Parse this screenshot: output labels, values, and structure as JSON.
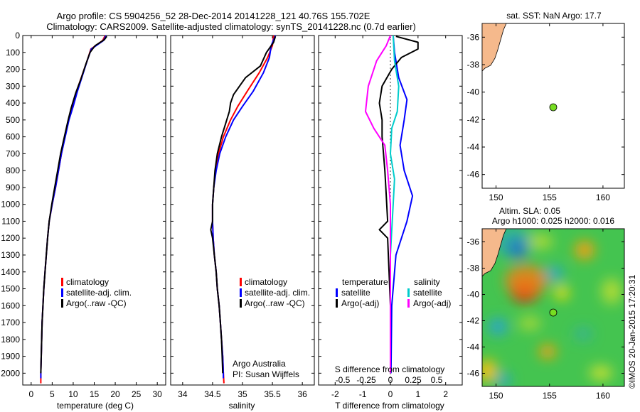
{
  "title_line1": "Argo profile: CS 5904256_52 28-Dec-2014 20141228_121 40.76S 155.702E",
  "title_line2": "Climatology: CARS2009. Satellite-adjusted climatology: synTS_20141228.nc (0.7d earlier)",
  "chart_data": [
    {
      "type": "line",
      "xlabel": "temperature (deg C)",
      "ylabel": "",
      "xlim": [
        -2,
        32
      ],
      "ylim": [
        2070,
        0
      ],
      "xticks": [
        0,
        5,
        10,
        15,
        20,
        25,
        30
      ],
      "yticks": [
        0,
        100,
        200,
        300,
        400,
        500,
        600,
        700,
        800,
        900,
        1000,
        1100,
        1200,
        1300,
        1400,
        1500,
        1600,
        1700,
        1800,
        1900,
        2000
      ],
      "legend": [
        "climatology",
        "satellite-adj. clim.",
        "Argo(..raw -QC)"
      ],
      "series": [
        {
          "name": "climatology",
          "color": "#ff0000",
          "points": [
            [
              17.6,
              0
            ],
            [
              17.0,
              30
            ],
            [
              14.2,
              80
            ],
            [
              13.3,
              150
            ],
            [
              12.2,
              230
            ],
            [
              10.8,
              330
            ],
            [
              9.8,
              420
            ],
            [
              8.9,
              500
            ],
            [
              8.0,
              600
            ],
            [
              7.2,
              700
            ],
            [
              6.5,
              800
            ],
            [
              5.8,
              900
            ],
            [
              5.0,
              1000
            ],
            [
              4.3,
              1100
            ],
            [
              3.9,
              1200
            ],
            [
              3.6,
              1300
            ],
            [
              3.3,
              1400
            ],
            [
              3.0,
              1500
            ],
            [
              2.8,
              1600
            ],
            [
              2.6,
              1700
            ],
            [
              2.5,
              1800
            ],
            [
              2.4,
              1900
            ],
            [
              2.3,
              2000
            ],
            [
              2.3,
              2060
            ]
          ]
        },
        {
          "name": "satellite-adj. clim.",
          "color": "#0000ff",
          "points": [
            [
              17.8,
              0
            ],
            [
              17.2,
              30
            ],
            [
              14.3,
              80
            ],
            [
              13.3,
              150
            ],
            [
              12.3,
              230
            ],
            [
              11.0,
              330
            ],
            [
              10.0,
              420
            ],
            [
              9.0,
              500
            ],
            [
              8.1,
              600
            ],
            [
              7.2,
              700
            ],
            [
              6.5,
              800
            ],
            [
              5.8,
              900
            ],
            [
              5.0,
              1000
            ],
            [
              4.3,
              1100
            ],
            [
              3.9,
              1200
            ],
            [
              3.6,
              1300
            ],
            [
              3.3,
              1400
            ],
            [
              3.0,
              1500
            ],
            [
              2.8,
              1600
            ],
            [
              2.6,
              1700
            ],
            [
              2.5,
              1800
            ],
            [
              2.4,
              1900
            ],
            [
              2.3,
              2000
            ],
            [
              2.3,
              2030
            ]
          ]
        },
        {
          "name": "Argo(..raw -QC)",
          "color": "#000000",
          "points": [
            [
              18.0,
              5
            ],
            [
              17.4,
              25
            ],
            [
              15.2,
              60
            ],
            [
              14.0,
              100
            ],
            [
              13.0,
              170
            ],
            [
              11.8,
              260
            ],
            [
              10.6,
              340
            ],
            [
              9.5,
              430
            ],
            [
              8.7,
              510
            ],
            [
              7.9,
              600
            ],
            [
              7.0,
              700
            ],
            [
              6.3,
              800
            ],
            [
              5.6,
              900
            ],
            [
              4.9,
              1000
            ],
            [
              4.3,
              1100
            ],
            [
              3.9,
              1200
            ],
            [
              3.6,
              1300
            ],
            [
              3.3,
              1400
            ],
            [
              3.0,
              1500
            ],
            [
              2.8,
              1600
            ],
            [
              2.6,
              1700
            ],
            [
              2.5,
              1800
            ],
            [
              2.4,
              1900
            ],
            [
              2.3,
              2000
            ]
          ]
        }
      ]
    },
    {
      "type": "line",
      "xlabel": "salinity",
      "ylabel": "",
      "xlim": [
        33.8,
        36.2
      ],
      "ylim": [
        2070,
        0
      ],
      "xticks": [
        34,
        34.5,
        35,
        35.5,
        36
      ],
      "xticklabels": [
        "34",
        "34.5",
        "35",
        "35.5",
        "36"
      ],
      "legend": [
        "climatology",
        "satellite-adj. clim.",
        "Argo(..raw -QC)"
      ],
      "annotation": [
        "Argo Australia",
        "PI: Susan Wijffels"
      ],
      "series": [
        {
          "name": "climatology",
          "color": "#ff0000",
          "points": [
            [
              35.52,
              0
            ],
            [
              35.5,
              60
            ],
            [
              35.42,
              130
            ],
            [
              35.28,
              220
            ],
            [
              35.08,
              330
            ],
            [
              34.92,
              420
            ],
            [
              34.8,
              500
            ],
            [
              34.68,
              600
            ],
            [
              34.6,
              700
            ],
            [
              34.55,
              800
            ],
            [
              34.52,
              900
            ],
            [
              34.5,
              1000
            ],
            [
              34.5,
              1100
            ],
            [
              34.51,
              1200
            ],
            [
              34.53,
              1300
            ],
            [
              34.56,
              1400
            ],
            [
              34.58,
              1500
            ],
            [
              34.61,
              1600
            ],
            [
              34.63,
              1700
            ],
            [
              34.65,
              1800
            ],
            [
              34.67,
              1900
            ],
            [
              34.68,
              2000
            ],
            [
              34.69,
              2060
            ]
          ]
        },
        {
          "name": "satellite-adj. clim.",
          "color": "#0000ff",
          "points": [
            [
              35.55,
              0
            ],
            [
              35.48,
              60
            ],
            [
              35.45,
              130
            ],
            [
              35.35,
              220
            ],
            [
              35.18,
              330
            ],
            [
              35.0,
              420
            ],
            [
              34.85,
              500
            ],
            [
              34.72,
              600
            ],
            [
              34.62,
              700
            ],
            [
              34.56,
              800
            ],
            [
              34.52,
              900
            ],
            [
              34.5,
              1000
            ],
            [
              34.5,
              1100
            ],
            [
              34.51,
              1200
            ],
            [
              34.53,
              1300
            ],
            [
              34.56,
              1400
            ],
            [
              34.58,
              1500
            ],
            [
              34.61,
              1600
            ],
            [
              34.63,
              1700
            ],
            [
              34.65,
              1800
            ],
            [
              34.67,
              1900
            ],
            [
              34.68,
              2000
            ],
            [
              34.68,
              2030
            ]
          ]
        },
        {
          "name": "Argo(..raw -QC)",
          "color": "#000000",
          "points": [
            [
              35.55,
              5
            ],
            [
              35.52,
              40
            ],
            [
              35.4,
              100
            ],
            [
              35.3,
              180
            ],
            [
              35.05,
              250
            ],
            [
              34.95,
              300
            ],
            [
              34.85,
              350
            ],
            [
              34.8,
              400
            ],
            [
              34.78,
              450
            ],
            [
              34.72,
              520
            ],
            [
              34.65,
              600
            ],
            [
              34.58,
              700
            ],
            [
              34.54,
              800
            ],
            [
              34.52,
              900
            ],
            [
              34.5,
              1000
            ],
            [
              34.5,
              1100
            ],
            [
              34.47,
              1150
            ],
            [
              34.5,
              1200
            ],
            [
              34.53,
              1300
            ],
            [
              34.56,
              1400
            ],
            [
              34.58,
              1500
            ],
            [
              34.61,
              1600
            ],
            [
              34.63,
              1700
            ],
            [
              34.65,
              1800
            ],
            [
              34.66,
              1900
            ],
            [
              34.67,
              2000
            ]
          ]
        }
      ]
    },
    {
      "type": "line",
      "xlabel": "T difference from climatology",
      "xlabel_top": "S difference from climatology",
      "xlim": [
        -2.6,
        2.6
      ],
      "ylim": [
        2070,
        0
      ],
      "xticks": [
        -2,
        -1,
        0,
        1,
        2
      ],
      "top_ticks": [
        "-0.5",
        "-0.25",
        "0",
        "0.25",
        "0.5"
      ],
      "legend_temperature": [
        "temperature",
        "satellite",
        "Argo(-adj)"
      ],
      "legend_salinity": [
        "salinity",
        "satellite",
        "Argo(-adj)"
      ],
      "series": [
        {
          "name": "temperature satellite",
          "color": "#0000ff",
          "points": [
            [
              0.1,
              0
            ],
            [
              0.15,
              100
            ],
            [
              0.3,
              250
            ],
            [
              0.6,
              380
            ],
            [
              0.5,
              500
            ],
            [
              0.35,
              650
            ],
            [
              0.5,
              800
            ],
            [
              0.8,
              950
            ],
            [
              0.6,
              1100
            ],
            [
              0.2,
              1300
            ],
            [
              0.05,
              1600
            ],
            [
              0.02,
              2000
            ]
          ]
        },
        {
          "name": "temperature Argo(-adj)",
          "color": "#000000",
          "points": [
            [
              0.2,
              5
            ],
            [
              1.0,
              40
            ],
            [
              1.0,
              80
            ],
            [
              0.4,
              130
            ],
            [
              0.05,
              200
            ],
            [
              -0.3,
              300
            ],
            [
              -0.4,
              400
            ],
            [
              -0.3,
              500
            ],
            [
              -0.3,
              600
            ],
            [
              -0.25,
              700
            ],
            [
              -0.2,
              800
            ],
            [
              -0.15,
              950
            ],
            [
              -0.1,
              1100
            ],
            [
              -0.4,
              1150
            ],
            [
              -0.1,
              1200
            ],
            [
              -0.05,
              1400
            ],
            [
              0,
              1600
            ],
            [
              0,
              2000
            ]
          ]
        },
        {
          "name": "salinity satellite",
          "color": "#00cccc",
          "points": [
            [
              0.1,
              0
            ],
            [
              0.15,
              150
            ],
            [
              0.3,
              300
            ],
            [
              0.25,
              450
            ],
            [
              0.05,
              550
            ],
            [
              0.0,
              700
            ],
            [
              0.15,
              850
            ],
            [
              0.1,
              1000
            ],
            [
              0.0,
              1300
            ],
            [
              0.0,
              2000
            ]
          ]
        },
        {
          "name": "salinity Argo(-adj)",
          "color": "#ff00ff",
          "points": [
            [
              0,
              0
            ],
            [
              -0.15,
              60
            ],
            [
              -0.5,
              150
            ],
            [
              -0.8,
              300
            ],
            [
              -0.9,
              450
            ],
            [
              -0.6,
              550
            ],
            [
              -0.2,
              650
            ],
            [
              -0.1,
              800
            ],
            [
              0,
              1000
            ],
            [
              0,
              2000
            ]
          ]
        }
      ]
    }
  ],
  "map_top": {
    "title": "sat. SST: NaN  Argo: 17.7",
    "xticks": [
      "150",
      "155",
      "160"
    ],
    "yticks": [
      "-36",
      "-38",
      "-40",
      "-42",
      "-44",
      "-46"
    ],
    "marker_lon": 155.702,
    "marker_lat": -40.76
  },
  "map_bottom": {
    "title_line1": "Altim. SLA: 0.05",
    "title_line2": "Argo h1000: 0.025 h2000: 0.016",
    "xticks": [
      "150",
      "155",
      "160"
    ],
    "yticks": [
      "-36",
      "-38",
      "-40",
      "-42",
      "-44",
      "-46"
    ],
    "marker_lon": 155.702,
    "marker_lat": -40.76
  },
  "credit": "©IMOS 20-Jan-2015 17:20:31",
  "colors": {
    "climatology": "#ff0000",
    "satellite": "#0000ff",
    "argo": "#000000",
    "salinity_sat": "#00cccc",
    "salinity_argo": "#ff00ff",
    "land": "#f5b98c",
    "marker": "#77dd22"
  }
}
